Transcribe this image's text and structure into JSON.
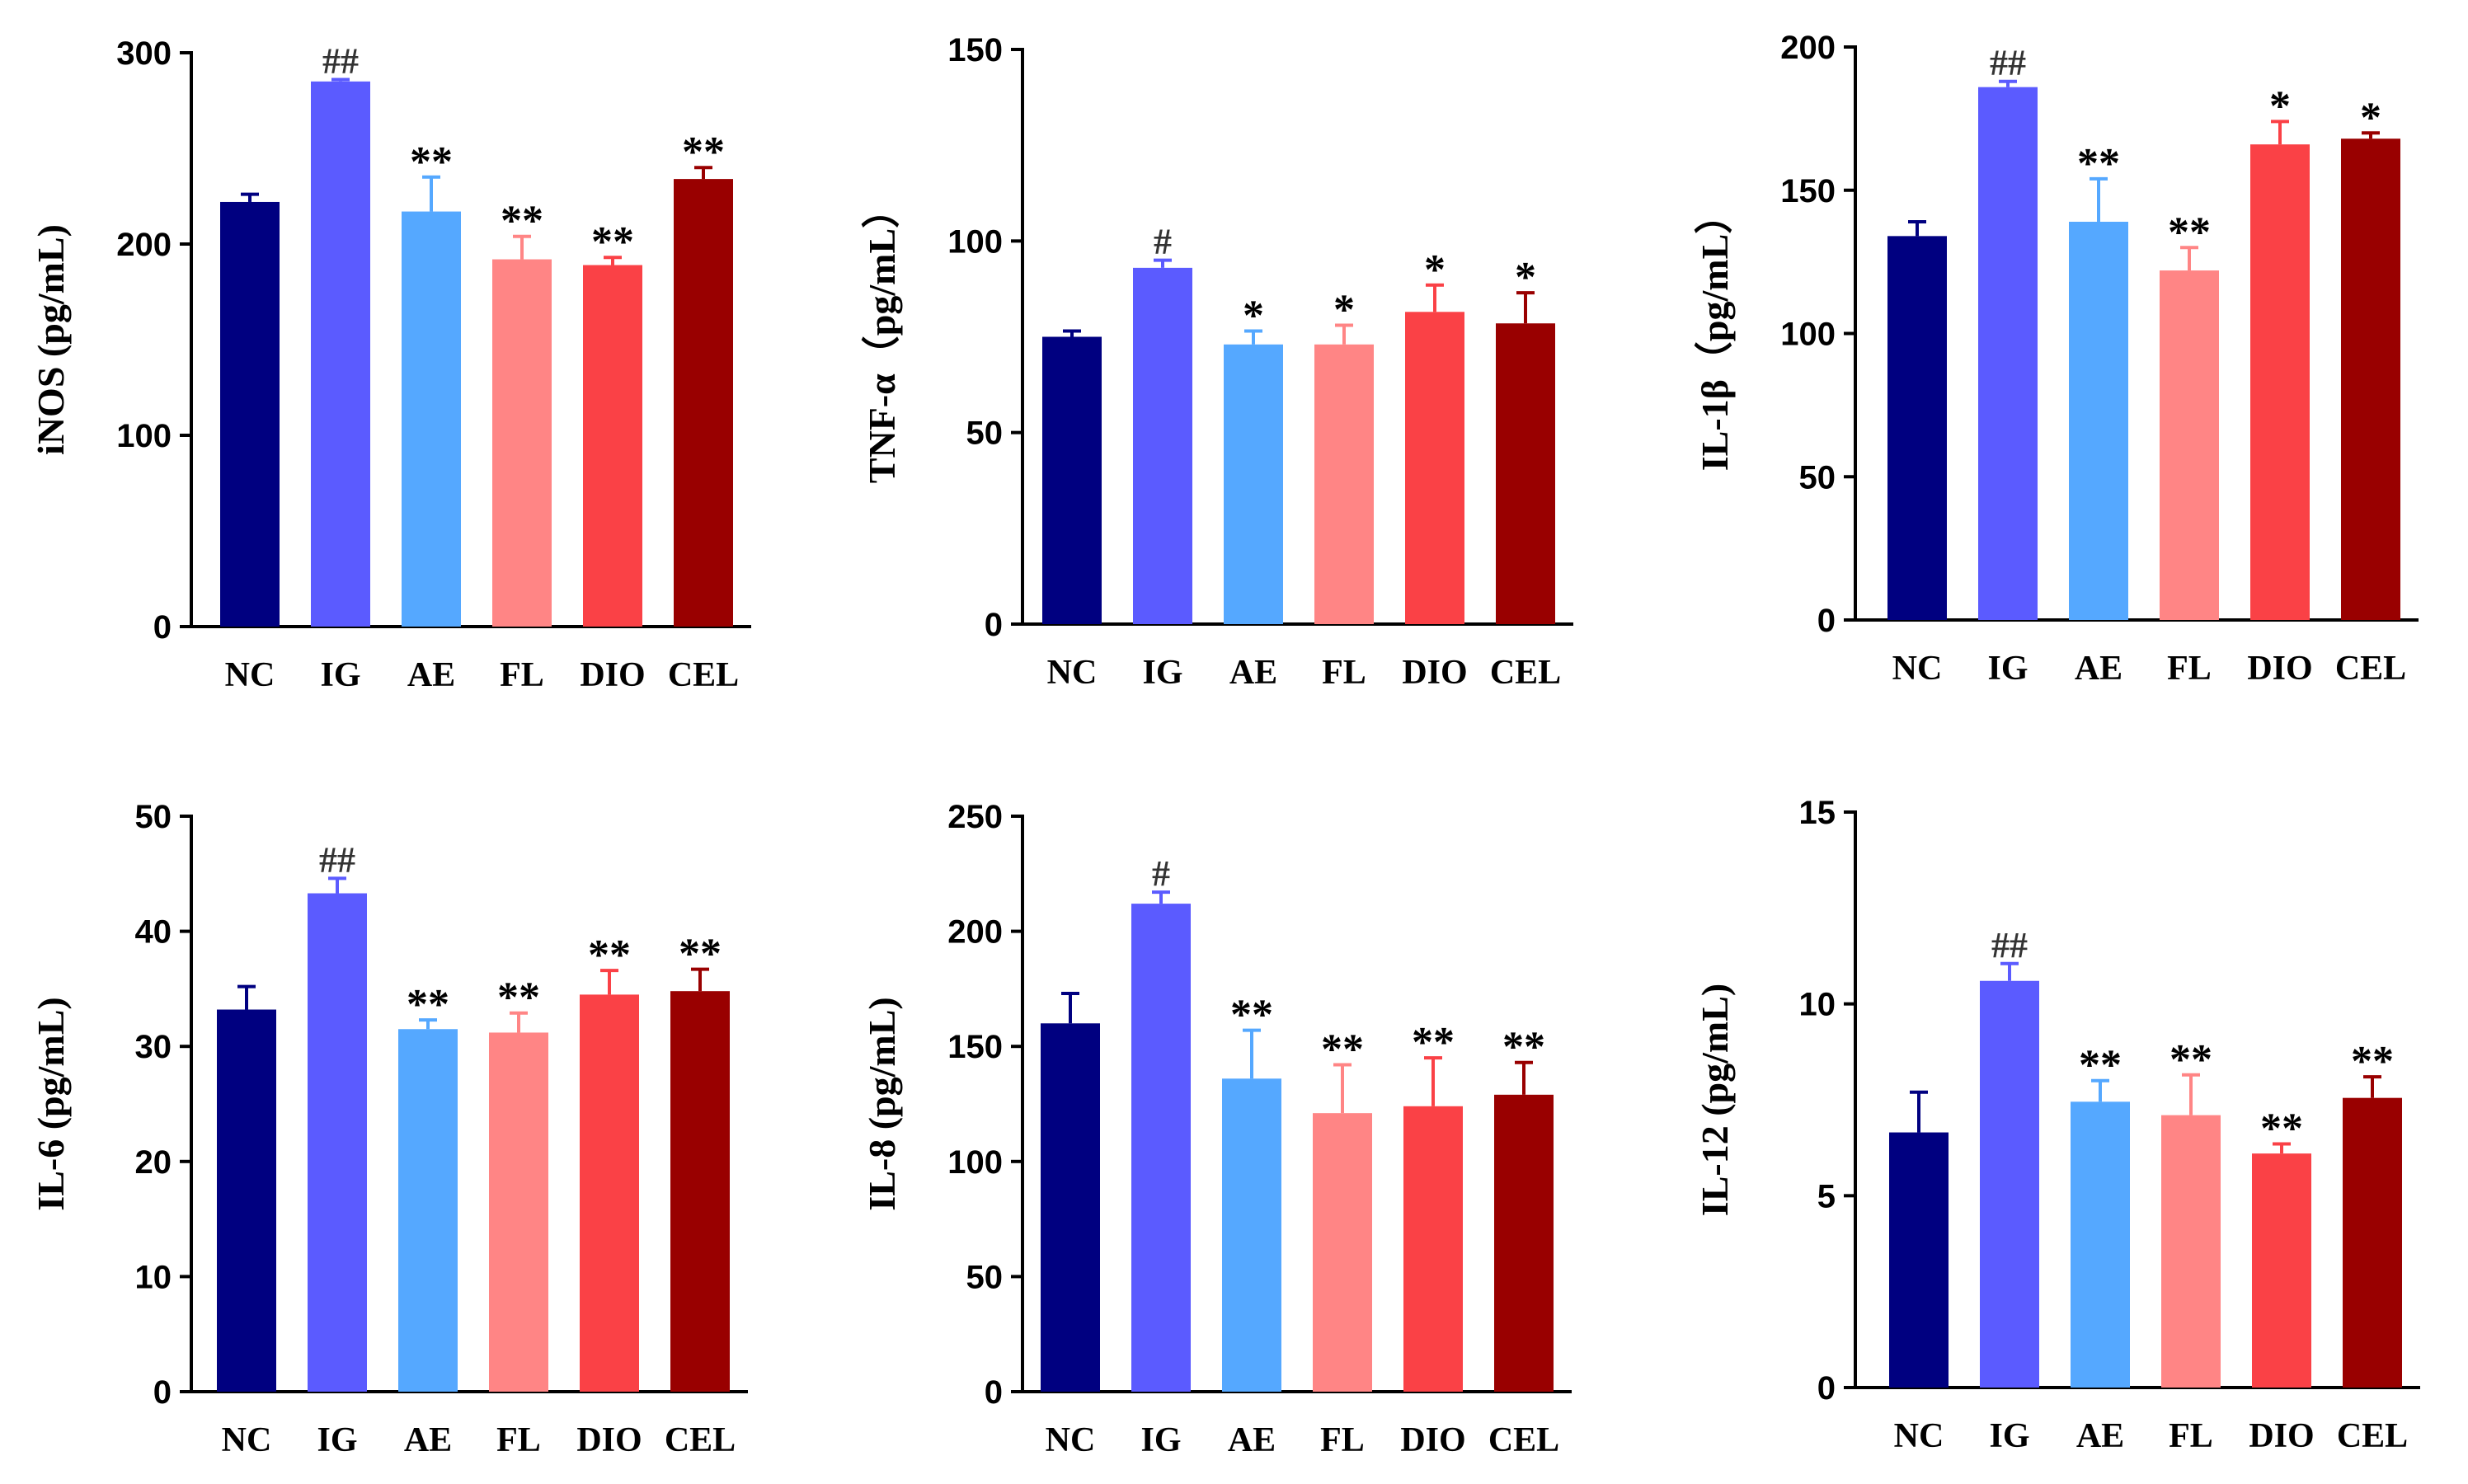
{
  "colors": {
    "NC": "#000080",
    "IG": "#5b5bff",
    "AE": "#55a8ff",
    "FL": "#ff8585",
    "DIO": "#fa4146",
    "CEL": "#990000"
  },
  "chart_data": [
    {
      "type": "bar",
      "ylabel": "iNOS (pg/mL)",
      "categories": [
        "NC",
        "IG",
        "AE",
        "FL",
        "DIO",
        "CEL"
      ],
      "values": [
        222,
        285,
        217,
        192,
        189,
        234
      ],
      "errors": [
        4,
        1,
        18,
        12,
        4,
        6
      ],
      "significance": [
        "",
        "##",
        "**",
        "**",
        "**",
        "**"
      ],
      "ylim": [
        0,
        300
      ],
      "yticks": [
        0,
        100,
        200,
        300
      ],
      "ytick_labels": [
        "0",
        "100",
        "200",
        "300"
      ]
    },
    {
      "type": "bar",
      "ylabel": "TNF-α（pg/mL）",
      "categories": [
        "NC",
        "IG",
        "AE",
        "FL",
        "DIO",
        "CEL"
      ],
      "values": [
        75,
        93,
        73,
        73,
        81.5,
        78.5
      ],
      "errors": [
        1.5,
        2,
        3.5,
        5,
        7,
        8
      ],
      "significance": [
        "",
        "#",
        "*",
        "*",
        "*",
        "*"
      ],
      "ylim": [
        0,
        150
      ],
      "yticks": [
        0,
        50,
        100,
        150
      ],
      "ytick_labels": [
        "0",
        "50",
        "100",
        "150"
      ]
    },
    {
      "type": "bar",
      "ylabel": "IL-1β（pg/mL）",
      "categories": [
        "NC",
        "IG",
        "AE",
        "FL",
        "DIO",
        "CEL"
      ],
      "values": [
        134,
        186,
        139,
        122,
        166,
        168
      ],
      "errors": [
        5,
        2,
        15,
        8,
        8,
        2
      ],
      "significance": [
        "",
        "##",
        "**",
        "**",
        "*",
        "*"
      ],
      "ylim": [
        0,
        200
      ],
      "yticks": [
        0,
        50,
        100,
        150,
        200
      ],
      "ytick_labels": [
        "0",
        "50",
        "100",
        "150",
        "200"
      ]
    },
    {
      "type": "bar",
      "ylabel": "IL-6 (pg/mL)",
      "categories": [
        "NC",
        "IG",
        "AE",
        "FL",
        "DIO",
        "CEL"
      ],
      "values": [
        33.2,
        43.3,
        31.5,
        31.2,
        34.5,
        34.8
      ],
      "errors": [
        2,
        1.3,
        0.8,
        1.7,
        2.1,
        1.9
      ],
      "significance": [
        "",
        "##",
        "**",
        "**",
        "**",
        "**"
      ],
      "ylim": [
        0,
        50
      ],
      "yticks": [
        0,
        10,
        20,
        30,
        40,
        50
      ],
      "ytick_labels": [
        "0",
        "10",
        "20",
        "30",
        "40",
        "50"
      ]
    },
    {
      "type": "bar",
      "ylabel": "IL-8 (pg/mL)",
      "categories": [
        "NC",
        "IG",
        "AE",
        "FL",
        "DIO",
        "CEL"
      ],
      "values": [
        160,
        212,
        136,
        121,
        124,
        129
      ],
      "errors": [
        13,
        5,
        21,
        21,
        21,
        14
      ],
      "significance": [
        "",
        "#",
        "**",
        "**",
        "**",
        "**"
      ],
      "ylim": [
        0,
        250
      ],
      "yticks": [
        0,
        50,
        100,
        150,
        200,
        250
      ],
      "ytick_labels": [
        "0",
        "50",
        "100",
        "150",
        "200",
        "250"
      ]
    },
    {
      "type": "bar",
      "ylabel": "IL-12 (pg/mL)",
      "categories": [
        "NC",
        "IG",
        "AE",
        "FL",
        "DIO",
        "CEL"
      ],
      "values": [
        6.65,
        10.6,
        7.45,
        7.1,
        6.1,
        7.55
      ],
      "errors": [
        1.05,
        0.45,
        0.55,
        1.05,
        0.25,
        0.55
      ],
      "significance": [
        "",
        "##",
        "**",
        "**",
        "**",
        "**"
      ],
      "ylim": [
        0,
        15
      ],
      "yticks": [
        0,
        5,
        10,
        15
      ],
      "ytick_labels": [
        "0",
        "5",
        "10",
        "15"
      ]
    }
  ]
}
